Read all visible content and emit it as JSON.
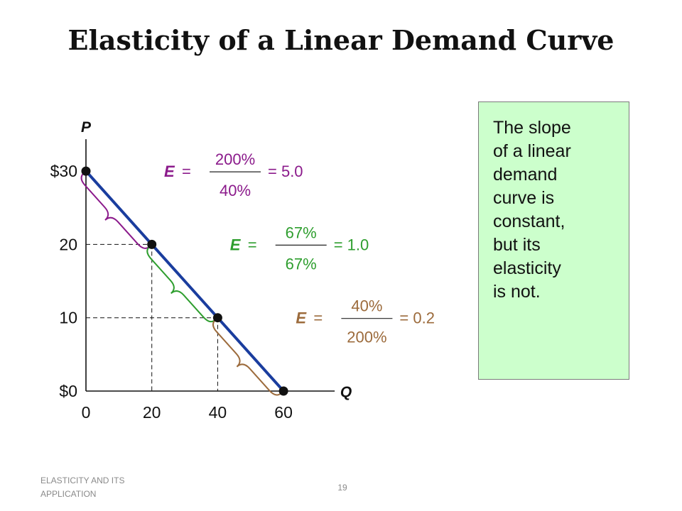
{
  "slide": {
    "title": "Elasticity of a Linear Demand Curve",
    "footer_left": "ELASTICITY AND ITS APPLICATION",
    "page_number": "19"
  },
  "note": {
    "text": "The slope\nof a linear\ndemand\ncurve is\nconstant,\nbut its\nelasticity\nis not."
  },
  "colors": {
    "curve": "#1a3d9e",
    "purple": "#8b1a8b",
    "green": "#2e9e2e",
    "brown": "#9c6b3c",
    "note_bg": "#ccffcc"
  },
  "chart_data": {
    "type": "line",
    "xlabel": "Q",
    "ylabel": "P",
    "xlim": [
      0,
      60
    ],
    "ylim": [
      0,
      30
    ],
    "x_ticks": [
      "0",
      "20",
      "40",
      "60"
    ],
    "y_ticks": [
      "$0",
      "10",
      "20",
      "$30"
    ],
    "series": [
      {
        "x": [
          0,
          20,
          40,
          60
        ],
        "y": [
          30,
          20,
          10,
          0
        ]
      }
    ],
    "guides": [
      {
        "x": 20,
        "y": 20
      },
      {
        "x": 40,
        "y": 10
      }
    ],
    "annotations": [
      {
        "from": [
          0,
          30
        ],
        "to": [
          20,
          20
        ],
        "color": "purple",
        "label": "E",
        "equals": "=",
        "numerator": "200%",
        "denominator": "40%",
        "result": "= 5.0"
      },
      {
        "from": [
          20,
          20
        ],
        "to": [
          40,
          10
        ],
        "color": "green",
        "label": "E",
        "equals": "=",
        "numerator": "67%",
        "denominator": "67%",
        "result": "= 1.0"
      },
      {
        "from": [
          40,
          10
        ],
        "to": [
          60,
          0
        ],
        "color": "brown",
        "label": "E",
        "equals": "=",
        "numerator": "40%",
        "denominator": "200%",
        "result": "= 0.2"
      }
    ]
  }
}
